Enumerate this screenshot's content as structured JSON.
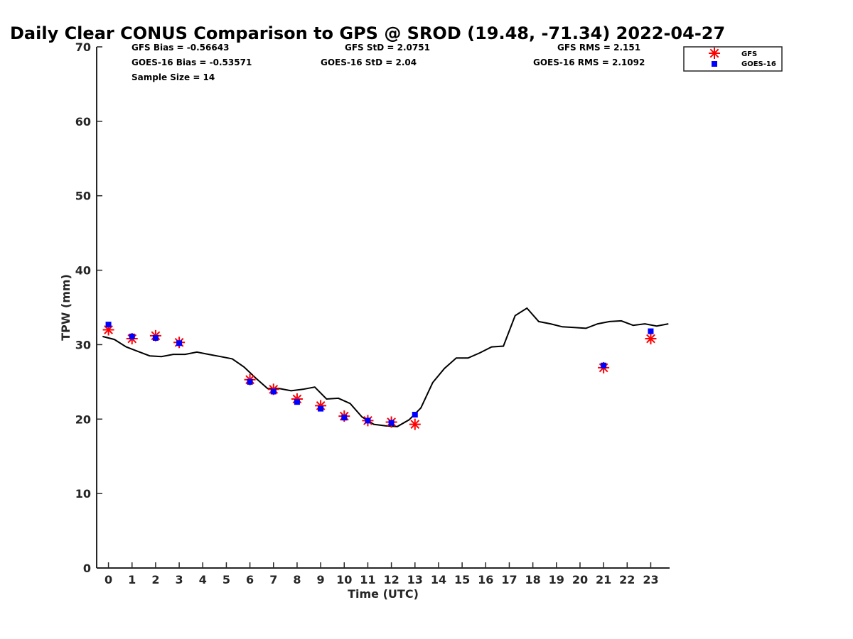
{
  "chart_data": {
    "type": "scatter",
    "title": "Daily Clear CONUS Comparison to GPS @ SROD (19.48, -71.34) 2022-04-27",
    "xlabel": "Time (UTC)",
    "ylabel": "TPW (mm)",
    "xlim": [
      -0.5,
      23.8
    ],
    "ylim": [
      0,
      70
    ],
    "x_ticks": [
      "0",
      "1",
      "2",
      "3",
      "4",
      "5",
      "6",
      "7",
      "8",
      "9",
      "10",
      "11",
      "12",
      "13",
      "14",
      "15",
      "16",
      "17",
      "18",
      "19",
      "20",
      "21",
      "22",
      "23"
    ],
    "y_ticks": [
      "0",
      "10",
      "20",
      "30",
      "40",
      "50",
      "60",
      "70"
    ],
    "grid": false,
    "legend_position": "top-right",
    "stats": {
      "gfs_bias": "GFS Bias = -0.56643",
      "gfs_std": "GFS StD = 2.0751",
      "gfs_rms": "GFS RMS = 2.151",
      "goes_bias": "GOES-16 Bias = -0.53571",
      "goes_std": "GOES-16 StD = 2.04",
      "goes_rms": "GOES-16 RMS = 2.1092",
      "sample_size": "Sample Size = 14"
    },
    "series": [
      {
        "name": "GFS",
        "marker": "asterisk",
        "color": "#ff0000",
        "x": [
          0,
          1,
          2,
          3,
          6,
          7,
          8,
          9,
          10,
          11,
          12,
          13,
          21,
          23
        ],
        "y": [
          32.0,
          30.8,
          31.2,
          30.3,
          25.3,
          24.0,
          22.7,
          21.8,
          20.4,
          19.8,
          19.6,
          19.3,
          26.9,
          30.8
        ]
      },
      {
        "name": "GOES-16",
        "marker": "square",
        "color": "#0000ff",
        "x": [
          0,
          1,
          2,
          3,
          6,
          7,
          8,
          9,
          10,
          11,
          12,
          13,
          21,
          23
        ],
        "y": [
          32.7,
          31.1,
          30.9,
          30.2,
          25.0,
          23.7,
          22.3,
          21.4,
          20.2,
          19.8,
          19.5,
          20.6,
          27.2,
          31.8
        ]
      },
      {
        "marker": "line",
        "color": "#000000",
        "x": [
          -0.25,
          0.25,
          0.75,
          1.25,
          1.75,
          2.25,
          2.75,
          3.25,
          3.75,
          4.25,
          4.75,
          5.25,
          5.75,
          6.25,
          6.75,
          7.25,
          7.75,
          8.25,
          8.75,
          9.25,
          9.75,
          10.25,
          10.75,
          11.25,
          11.75,
          12.25,
          12.75,
          13.25,
          13.75,
          14.25,
          14.75,
          15.25,
          15.75,
          16.25,
          16.75,
          17.25,
          17.75,
          18.25,
          18.75,
          19.25,
          19.75,
          20.25,
          20.75,
          21.25,
          21.75,
          22.25,
          22.75,
          23.25,
          23.75
        ],
        "y": [
          31.1,
          30.7,
          29.7,
          29.1,
          28.5,
          28.4,
          28.7,
          28.7,
          29.0,
          28.7,
          28.4,
          28.1,
          27.0,
          25.5,
          24.1,
          24.1,
          23.8,
          24.0,
          24.3,
          22.7,
          22.8,
          22.1,
          20.3,
          19.3,
          19.1,
          19.0,
          19.9,
          21.5,
          24.9,
          26.8,
          28.2,
          28.2,
          28.9,
          29.7,
          29.8,
          33.9,
          34.9,
          33.1,
          32.8,
          32.4,
          32.3,
          32.2,
          32.8,
          33.1,
          33.2,
          32.6,
          32.8,
          32.5,
          32.8
        ]
      }
    ]
  }
}
